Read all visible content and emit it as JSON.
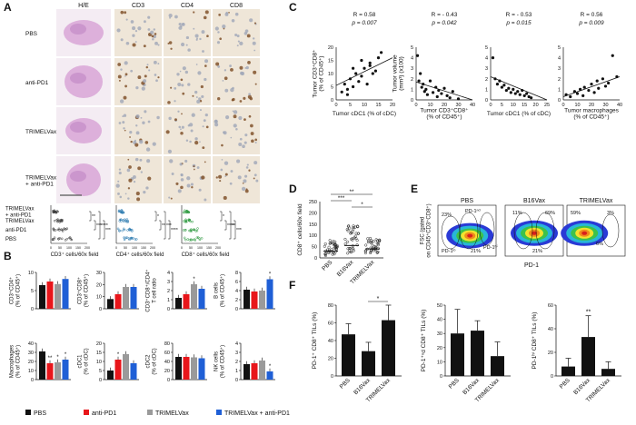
{
  "panel_letters": [
    "A",
    "B",
    "C",
    "D",
    "E",
    "F"
  ],
  "colors": {
    "pbs": "#111111",
    "antipd1": "#e8161b",
    "trimelvax": "#9a9a9a",
    "combo": "#1f5fd6",
    "he_pink": "#d8a6d6",
    "ihc_tan": "#c9a57a"
  },
  "panel_a": {
    "column_headers": [
      "H/E",
      "CD3",
      "CD4",
      "CD8"
    ],
    "row_labels": [
      "PBS",
      "anti-PD1",
      "TRIMELVax",
      "TRIMELVax\n+ anti-PD1"
    ],
    "dot_group_labels": [
      "TRIMELVax\n+ anti-PD1",
      "TRIMELVax",
      "anti-PD1",
      "PBS"
    ],
    "dot_axis_labels": [
      "CD3⁺ cells/60x field",
      "CD4⁺ cells/60x field",
      "CD8⁺ cells/60x field"
    ],
    "dot_ticks": [
      "0",
      "50",
      "100",
      "150",
      "200"
    ],
    "sig_cd3": [
      "**",
      "***",
      "****",
      "***"
    ],
    "sig_cd4": [
      "*",
      "**",
      "***",
      "****"
    ],
    "sig_cd8": [
      "*",
      "****",
      "**",
      "***"
    ]
  },
  "legend": [
    {
      "label": "PBS",
      "color": "#111111"
    },
    {
      "label": "anti-PD1",
      "color": "#e8161b"
    },
    {
      "label": "TRIMELVax",
      "color": "#9a9a9a"
    },
    {
      "label": "TRIMELVax + anti-PD1",
      "color": "#1f5fd6"
    }
  ],
  "chart_data": [
    {
      "panel": "B",
      "type": "bar",
      "ylabel": "CD3⁺CD4⁺\n(% of CD45⁺)",
      "ylim": [
        0,
        10
      ],
      "yticks": [
        0,
        5,
        10
      ],
      "series": [
        {
          "name": "PBS",
          "values": [
            6.5
          ]
        },
        {
          "name": "anti-PD1",
          "values": [
            7.5
          ]
        },
        {
          "name": "TRIMELVax",
          "values": [
            6.8
          ]
        },
        {
          "name": "TRIMELVax + anti-PD1",
          "values": [
            8.2
          ]
        }
      ],
      "stars": [
        "",
        "",
        "",
        ""
      ]
    },
    {
      "panel": "B",
      "type": "bar",
      "ylabel": "CD3⁺CD8⁺\n(% of CD45⁺)",
      "ylim": [
        0,
        30
      ],
      "yticks": [
        0,
        10,
        20,
        30
      ],
      "series": [
        {
          "name": "PBS",
          "values": [
            8
          ]
        },
        {
          "name": "anti-PD1",
          "values": [
            12
          ]
        },
        {
          "name": "TRIMELVax",
          "values": [
            18
          ]
        },
        {
          "name": "TRIMELVax + anti-PD1",
          "values": [
            18
          ]
        }
      ],
      "stars": [
        "",
        "",
        "",
        ""
      ]
    },
    {
      "panel": "B",
      "type": "bar",
      "ylabel": "CD3⁺CD8⁺/CD4⁺\nT cell ratio",
      "ylim": [
        0,
        4
      ],
      "yticks": [
        0,
        1,
        2,
        3,
        4
      ],
      "series": [
        {
          "name": "PBS",
          "values": [
            1.2
          ]
        },
        {
          "name": "anti-PD1",
          "values": [
            1.6
          ]
        },
        {
          "name": "TRIMELVax",
          "values": [
            2.7
          ]
        },
        {
          "name": "TRIMELVax + anti-PD1",
          "values": [
            2.2
          ]
        }
      ],
      "stars": [
        "",
        "",
        "*",
        ""
      ]
    },
    {
      "panel": "B",
      "type": "bar",
      "ylabel": "B cells\n(% of CD45⁺)",
      "ylim": [
        0,
        8
      ],
      "yticks": [
        0,
        2,
        4,
        6,
        8
      ],
      "series": [
        {
          "name": "PBS",
          "values": [
            4.2
          ]
        },
        {
          "name": "anti-PD1",
          "values": [
            3.8
          ]
        },
        {
          "name": "TRIMELVax",
          "values": [
            4.0
          ]
        },
        {
          "name": "TRIMELVax + anti-PD1",
          "values": [
            6.5
          ]
        }
      ],
      "stars": [
        "",
        "",
        "",
        "*"
      ]
    },
    {
      "panel": "B",
      "type": "bar",
      "ylabel": "Macrophages\n(% of CD45⁺)",
      "ylim": [
        0,
        40
      ],
      "yticks": [
        0,
        10,
        20,
        30,
        40
      ],
      "series": [
        {
          "name": "PBS",
          "values": [
            31
          ]
        },
        {
          "name": "anti-PD1",
          "values": [
            18
          ]
        },
        {
          "name": "TRIMELVax",
          "values": [
            19
          ]
        },
        {
          "name": "TRIMELVax + anti-PD1",
          "values": [
            22
          ]
        }
      ],
      "stars": [
        "",
        "**",
        "*",
        "*"
      ]
    },
    {
      "panel": "B",
      "type": "bar",
      "ylabel": "cDC1\n(% of cDC)",
      "ylim": [
        0,
        20
      ],
      "yticks": [
        0,
        5,
        10,
        15,
        20
      ],
      "series": [
        {
          "name": "PBS",
          "values": [
            5
          ]
        },
        {
          "name": "anti-PD1",
          "values": [
            11
          ]
        },
        {
          "name": "TRIMELVax",
          "values": [
            14
          ]
        },
        {
          "name": "TRIMELVax + anti-PD1",
          "values": [
            9
          ]
        }
      ],
      "stars": [
        "",
        "*",
        "",
        ""
      ]
    },
    {
      "panel": "B",
      "type": "bar",
      "ylabel": "cDC2\n(% of cDC)",
      "ylim": [
        0,
        80
      ],
      "yticks": [
        0,
        20,
        40,
        60,
        80
      ],
      "series": [
        {
          "name": "PBS",
          "values": [
            50
          ]
        },
        {
          "name": "anti-PD1",
          "values": [
            50
          ]
        },
        {
          "name": "TRIMELVax",
          "values": [
            49
          ]
        },
        {
          "name": "TRIMELVax + anti-PD1",
          "values": [
            47
          ]
        }
      ],
      "stars": [
        "",
        "",
        "",
        ""
      ]
    },
    {
      "panel": "B",
      "type": "bar",
      "ylabel": "NK cells\n(% of CD45⁺)",
      "ylim": [
        0,
        4
      ],
      "yticks": [
        0,
        1,
        2,
        3,
        4
      ],
      "series": [
        {
          "name": "PBS",
          "values": [
            1.7
          ]
        },
        {
          "name": "anti-PD1",
          "values": [
            1.8
          ]
        },
        {
          "name": "TRIMELVax",
          "values": [
            2.1
          ]
        },
        {
          "name": "TRIMELVax + anti-PD1",
          "values": [
            0.9
          ]
        }
      ],
      "stars": [
        "",
        "",
        "",
        "*"
      ]
    },
    {
      "panel": "C",
      "type": "scatter",
      "stat": "R = 0.58",
      "pval": "p = 0.007",
      "xlabel": "Tumor cDC1 (% of cDC)",
      "ylabel": "Tumor CD3⁺CD8⁺\n(% of CD45⁺)",
      "xlim": [
        0,
        20
      ],
      "ylim": [
        0,
        20
      ],
      "xticks": [
        0,
        5,
        10,
        15,
        20
      ],
      "yticks": [
        0,
        5,
        10,
        15,
        20
      ],
      "x": [
        2,
        3,
        4,
        5,
        6,
        7,
        8,
        9,
        10,
        11,
        12,
        13,
        14,
        15,
        16,
        4,
        6,
        9,
        12
      ],
      "y": [
        3,
        6,
        4,
        8,
        5,
        10,
        7,
        9,
        12,
        6,
        14,
        10,
        11,
        16,
        18,
        2,
        12,
        15,
        13
      ],
      "fit": [
        [
          0,
          5.5
        ],
        [
          20,
          16
        ]
      ]
    },
    {
      "panel": "C",
      "type": "scatter",
      "stat": "R = - 0.43",
      "pval": "p = 0.042",
      "xlabel": "Tumor CD3⁺CD8⁺\n(% of CD45⁺)",
      "ylabel": "Tumor volume\n(mm³) (x100)",
      "xlim": [
        0,
        40
      ],
      "ylim": [
        0,
        5
      ],
      "xticks": [
        0,
        10,
        20,
        30,
        40
      ],
      "yticks": [
        0,
        1,
        2,
        3,
        4,
        5
      ],
      "x": [
        1,
        2,
        3,
        4,
        5,
        6,
        7,
        8,
        10,
        12,
        14,
        15,
        16,
        18,
        20,
        22,
        24,
        26,
        30
      ],
      "y": [
        4.2,
        1.8,
        2.5,
        1.2,
        1.5,
        0.8,
        1.0,
        0.5,
        1.8,
        0.7,
        1.2,
        0.3,
        0.9,
        0.6,
        1.1,
        0.4,
        0.2,
        0.8,
        0.1
      ],
      "fit": [
        [
          0,
          1.7
        ],
        [
          40,
          0
        ]
      ]
    },
    {
      "panel": "C",
      "type": "scatter",
      "stat": "R = - 0.53",
      "pval": "p = 0.015",
      "xlabel": "Tumor cDC1 (% of cDC)",
      "ylabel": "",
      "xlim": [
        0,
        25
      ],
      "ylim": [
        0,
        5
      ],
      "xticks": [
        0,
        5,
        10,
        15,
        20,
        25
      ],
      "yticks": [
        0,
        1,
        2,
        3,
        4,
        5
      ],
      "x": [
        1,
        2,
        3,
        4,
        5,
        6,
        7,
        8,
        9,
        10,
        11,
        12,
        13,
        14,
        15,
        16,
        17,
        18
      ],
      "y": [
        4.0,
        2.0,
        1.5,
        1.8,
        1.2,
        1.4,
        0.9,
        1.1,
        0.7,
        1.0,
        0.6,
        0.8,
        0.5,
        0.9,
        0.4,
        0.6,
        0.3,
        0.2
      ],
      "fit": [
        [
          0,
          2.2
        ],
        [
          25,
          0
        ]
      ]
    },
    {
      "panel": "C",
      "type": "scatter",
      "stat": "R = 0.56",
      "pval": "p = 0.009",
      "xlabel": "Tumor macrophages\n(% of CD45⁺)",
      "ylabel": "",
      "xlim": [
        0,
        40
      ],
      "ylim": [
        0,
        5
      ],
      "xticks": [
        0,
        10,
        20,
        30,
        40
      ],
      "yticks": [
        0,
        1,
        2,
        3,
        4,
        5
      ],
      "x": [
        2,
        5,
        8,
        10,
        12,
        14,
        15,
        18,
        20,
        22,
        24,
        25,
        28,
        30,
        32,
        35,
        38
      ],
      "y": [
        0.5,
        0.3,
        0.8,
        0.6,
        1.0,
        0.4,
        1.2,
        0.9,
        1.5,
        0.7,
        1.8,
        1.1,
        2.0,
        1.3,
        1.6,
        4.2,
        2.2
      ],
      "fit": [
        [
          0,
          0.3
        ],
        [
          40,
          2.2
        ]
      ]
    },
    {
      "panel": "D",
      "type": "scatter",
      "ylabel": "CD8⁺ cells/60x field",
      "ylim": [
        0,
        250
      ],
      "yticks": [
        0,
        50,
        100,
        150,
        200,
        250
      ],
      "categories": [
        "PBS",
        "B16Vax",
        "TRIMELVax"
      ],
      "sig": [
        "**",
        "***",
        "*"
      ]
    },
    {
      "panel": "F",
      "type": "bar",
      "ylabel": "PD-1⁺ CD8⁺ TILs (%)",
      "ylim": [
        0,
        80
      ],
      "yticks": [
        0,
        20,
        40,
        60,
        80
      ],
      "categories": [
        "PBS",
        "B16Vax",
        "TRIMELVax"
      ],
      "values": [
        47,
        28,
        63
      ],
      "errors": [
        12,
        10,
        18
      ],
      "stars": []
    },
    {
      "panel": "F",
      "type": "bar",
      "ylabel": "PD-1⁺ⁿd CD8⁺ TILs (%)",
      "ylim": [
        0,
        50
      ],
      "yticks": [
        0,
        10,
        20,
        30,
        40,
        50
      ],
      "categories": [
        "PBS",
        "B16Vax",
        "TRIMELVax"
      ],
      "values": [
        30,
        32,
        14
      ],
      "errors": [
        17,
        7,
        10
      ],
      "stars": [
        "",
        "",
        ""
      ]
    },
    {
      "panel": "F",
      "type": "bar",
      "ylabel": "PD-1ʰⁱ CD8⁺ TILs (%)",
      "ylim": [
        0,
        60
      ],
      "yticks": [
        0,
        20,
        40,
        60
      ],
      "categories": [
        "PBS",
        "B16Vax",
        "TRIMELVax"
      ],
      "values": [
        8,
        33,
        6
      ],
      "errors": [
        7,
        18,
        6
      ],
      "stars": [
        "",
        "**",
        ""
      ]
    }
  ],
  "panel_e": {
    "titles": [
      "PBS",
      "B16Vax",
      "TRIMELVax"
    ],
    "ylabel": "FSC (gated\non CD45⁺CD3⁺CD8⁺)",
    "xlabel": "PD-1",
    "annotations": [
      [
        "23%",
        "PD-1ⁿᵈ",
        "PD-1ˡᵒ",
        "21%",
        "PD-1ʰⁱ"
      ],
      [
        "11%",
        "69%",
        "21%"
      ],
      [
        "59%",
        "3%",
        "6%"
      ]
    ]
  },
  "panel_f_sig": "*"
}
